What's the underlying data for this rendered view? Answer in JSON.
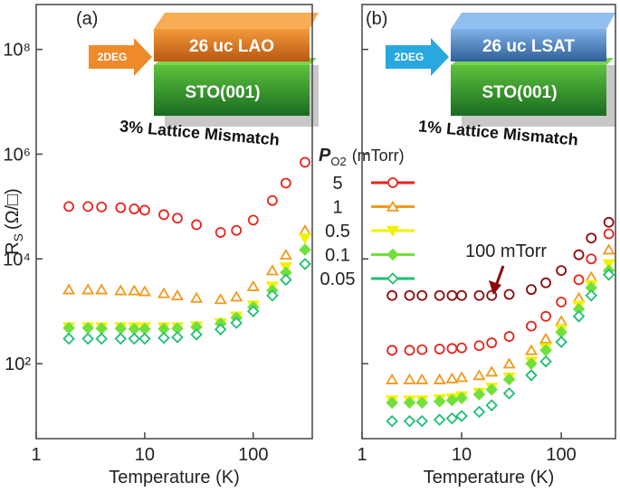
{
  "chart_data": [
    {
      "type": "scatter",
      "panel_label": "(a)",
      "xscale": "log",
      "yscale": "log",
      "xlim": [
        1,
        350
      ],
      "ylim": [
        3.7,
        720000000
      ],
      "xticks": [
        1,
        10,
        100
      ],
      "yticks": [
        {
          "value": 100,
          "label": "10²"
        },
        {
          "value": 10000,
          "label": "10⁴"
        },
        {
          "value": 1000000,
          "label": "10⁶"
        },
        {
          "value": 100000000,
          "label": "10⁸"
        }
      ],
      "xlabel": "Temperature (K)",
      "ylabel": [
        "R",
        "S",
        "(Ω/□)"
      ],
      "legend_title": [
        "P",
        "O2",
        "(mTorr)"
      ],
      "inset": {
        "arrow": "2DEG",
        "top_layer": "26 uc LAO",
        "substrate": "STO(001)",
        "caption": "3% Lattice Mismatch"
      },
      "x": [
        2,
        3,
        4,
        6,
        8,
        10,
        15,
        20,
        30,
        50,
        70,
        100,
        150,
        200,
        300
      ],
      "series": [
        {
          "name": "5",
          "color": "#e8231c",
          "marker": "circle-open",
          "values": [
            100000,
            100000,
            98000,
            95000,
            90000,
            85000,
            70000,
            60000,
            45000,
            32000,
            35000,
            55000,
            130000,
            280000,
            700000
          ]
        },
        {
          "name": "1",
          "color": "#f29a1c",
          "marker": "triangle-open",
          "values": [
            2600,
            2600,
            2600,
            2500,
            2500,
            2400,
            2200,
            2000,
            1800,
            1700,
            1900,
            3000,
            6000,
            12000,
            35000
          ]
        },
        {
          "name": "0.5",
          "color": "#f2f200",
          "marker": "triangle-down-filled",
          "values": [
            500,
            500,
            500,
            500,
            500,
            500,
            500,
            500,
            520,
            600,
            800,
            1300,
            3000,
            7000,
            25000
          ]
        },
        {
          "name": "0.1",
          "color": "#72e03c",
          "marker": "diamond-filled",
          "values": [
            480,
            480,
            470,
            470,
            460,
            460,
            460,
            470,
            500,
            580,
            750,
            1200,
            2500,
            5500,
            15000
          ]
        },
        {
          "name": "0.05",
          "color": "#1fbf73",
          "marker": "diamond-open",
          "values": [
            300,
            300,
            300,
            300,
            300,
            300,
            310,
            320,
            360,
            450,
            600,
            1000,
            2000,
            4000,
            8000
          ]
        }
      ]
    },
    {
      "type": "scatter",
      "panel_label": "(b)",
      "xscale": "log",
      "yscale": "log",
      "xlim": [
        1,
        350
      ],
      "ylim": [
        3.7,
        720000000
      ],
      "xticks": [
        1,
        10,
        100
      ],
      "yticks": [
        100,
        10000,
        1000000,
        100000000
      ],
      "xlabel": "Temperature (K)",
      "inset": {
        "arrow": "2DEG",
        "top_layer": "26 uc LSAT",
        "substrate": "STO(001)",
        "caption": "1% Lattice Mismatch"
      },
      "x": [
        2,
        3,
        4,
        6,
        8,
        10,
        15,
        20,
        30,
        50,
        70,
        100,
        150,
        200,
        300
      ],
      "series": [
        {
          "name": "100 mTorr",
          "color": "#8b0a0a",
          "marker": "circle-open",
          "values": [
            2000,
            2000,
            2000,
            2000,
            2000,
            2000,
            2000,
            2000,
            2100,
            2600,
            3500,
            6000,
            12000,
            25000,
            50000
          ]
        },
        {
          "color": "#e8231c",
          "marker": "circle-open",
          "values": [
            180,
            180,
            185,
            190,
            195,
            200,
            220,
            250,
            330,
            520,
            800,
            1500,
            4000,
            10000,
            30000
          ]
        },
        {
          "color": "#f29a1c",
          "marker": "triangle-open",
          "values": [
            50,
            50,
            50,
            50,
            52,
            55,
            60,
            70,
            100,
            180,
            300,
            650,
            1800,
            4500,
            15000
          ]
        },
        {
          "color": "#f2f200",
          "marker": "triangle-down-filled",
          "values": [
            20,
            20,
            20,
            21,
            22,
            24,
            28,
            35,
            55,
            110,
            200,
            450,
            1300,
            3200,
            8000
          ]
        },
        {
          "color": "#72e03c",
          "marker": "diamond-filled",
          "values": [
            18,
            18,
            18,
            19,
            20,
            22,
            26,
            32,
            50,
            100,
            180,
            400,
            1100,
            2800,
            6000
          ]
        },
        {
          "color": "#1fbf73",
          "marker": "diamond-open",
          "values": [
            8,
            8,
            8,
            8.5,
            9,
            10,
            12,
            16,
            27,
            60,
            110,
            260,
            800,
            2000,
            5000
          ]
        }
      ]
    }
  ]
}
